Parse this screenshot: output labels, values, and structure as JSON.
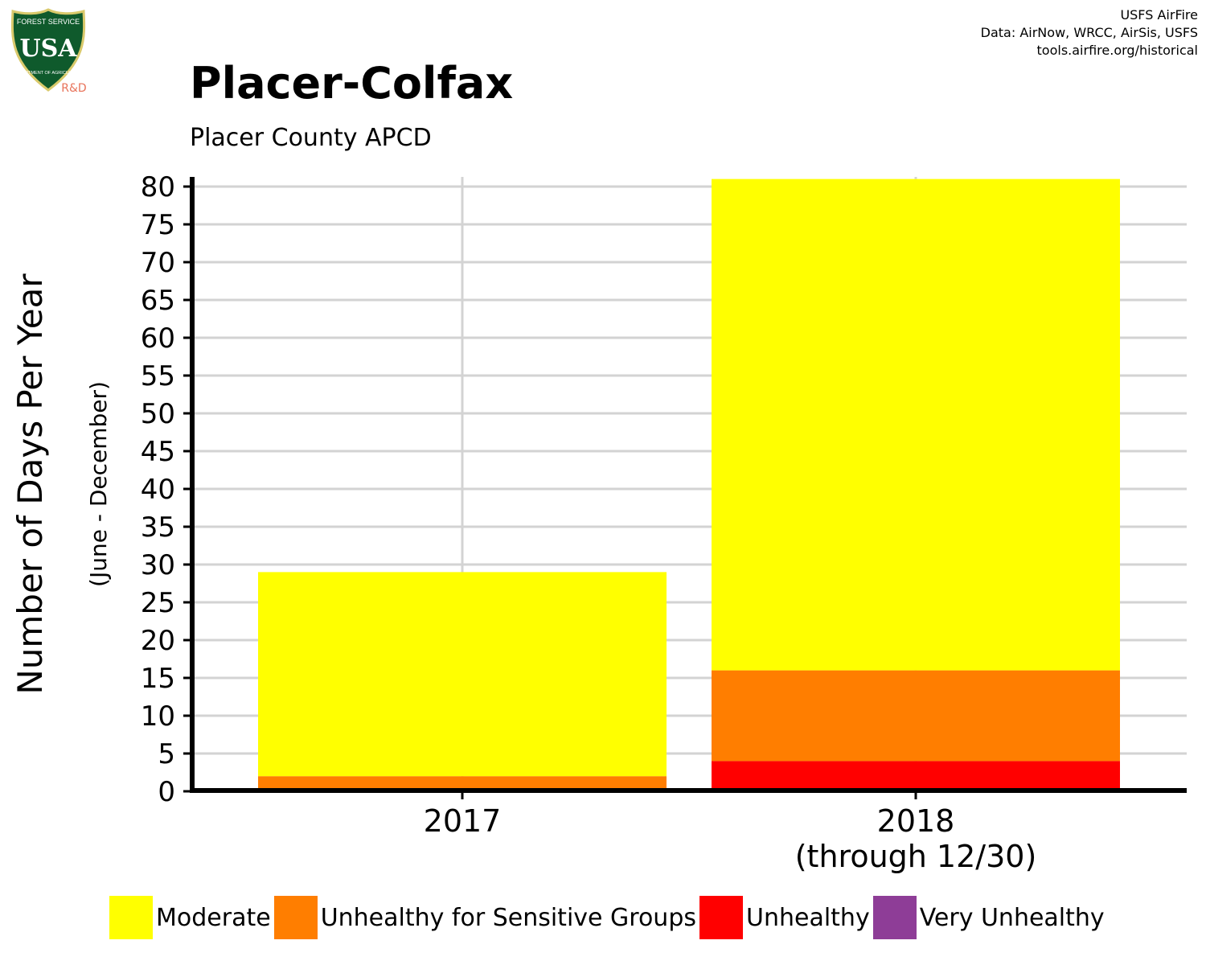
{
  "logo": {
    "agency_text": "FOREST SERVICE",
    "letters": "USA",
    "dept_text": "DEPARTMENT OF AGRICULTURE",
    "tag": "R&D",
    "colors": {
      "shield": "#0f5a2c",
      "border": "#d9c96b",
      "tag": "#e8735a"
    }
  },
  "credits": {
    "line1": "USFS AirFire",
    "line2": "Data: AirNow, WRCC, AirSis, USFS",
    "line3": "tools.airfire.org/historical"
  },
  "chart_data": {
    "type": "bar",
    "stacked": true,
    "title": "Placer-Colfax",
    "subtitle": "Placer County APCD",
    "ylabel": "Number of Days Per Year",
    "ylabel_sub": "(June - December)",
    "xlabel": "",
    "categories": [
      "2017",
      "2018"
    ],
    "category_sublabels": [
      "",
      "(through 12/30)"
    ],
    "ylim": [
      0,
      80
    ],
    "yticks": [
      0,
      5,
      10,
      15,
      20,
      25,
      30,
      35,
      40,
      45,
      50,
      55,
      60,
      65,
      70,
      75,
      80
    ],
    "grid": true,
    "legend_position": "bottom",
    "series": [
      {
        "name": "Very Unhealthy",
        "color": "#8e3d97",
        "values": [
          0,
          0
        ]
      },
      {
        "name": "Unhealthy",
        "color": "#ff0000",
        "values": [
          0,
          4
        ]
      },
      {
        "name": "Unhealthy for Sensitive Groups",
        "color": "#ff7e00",
        "values": [
          2,
          12
        ]
      },
      {
        "name": "Moderate",
        "color": "#ffff00",
        "values": [
          27,
          65
        ]
      }
    ],
    "legend_order": [
      "Moderate",
      "Unhealthy for Sensitive Groups",
      "Unhealthy",
      "Very Unhealthy"
    ]
  }
}
